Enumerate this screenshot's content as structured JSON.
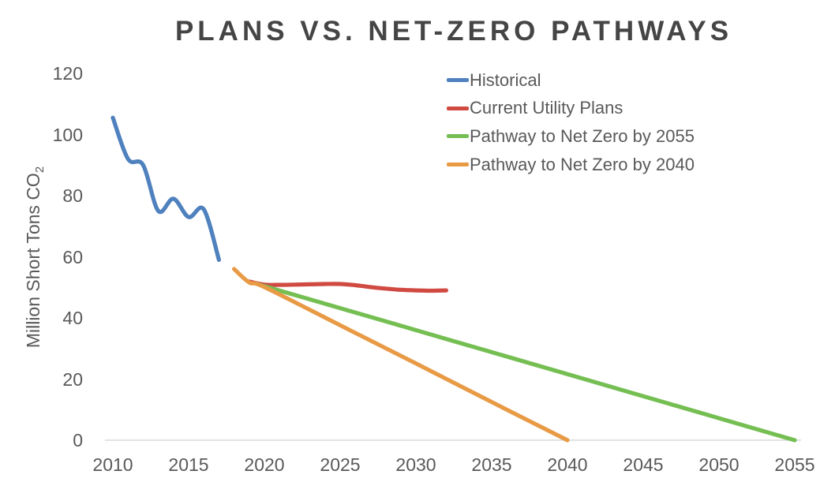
{
  "title": "PLANS VS. NET-ZERO PATHWAYS",
  "colors": {
    "historical": "#4e81bd",
    "current_utility_plans": "#d04a42",
    "net_zero_2055": "#74be52",
    "net_zero_2040": "#e89a45",
    "axis_line": "#d9d9d9",
    "text": "#595959",
    "title_text": "#454545"
  },
  "chart_data": {
    "type": "line",
    "title": "PLANS VS. NET-ZERO PATHWAYS",
    "xlabel": "",
    "ylabel": "Million Short Tons CO2",
    "ylabel_main": "Million Short Tons CO",
    "ylabel_sub": "2",
    "xlim": [
      2010,
      2055
    ],
    "ylim": [
      0,
      120
    ],
    "x_ticks": [
      2010,
      2015,
      2020,
      2025,
      2030,
      2035,
      2040,
      2045,
      2050,
      2055
    ],
    "y_ticks": [
      0,
      20,
      40,
      60,
      80,
      100,
      120
    ],
    "grid": false,
    "legend_position": "top-right-inside",
    "series": [
      {
        "name": "Historical",
        "color": "#4e81bd",
        "points": [
          [
            2010,
            105.5
          ],
          [
            2011,
            92
          ],
          [
            2012,
            90
          ],
          [
            2013,
            75
          ],
          [
            2014,
            79
          ],
          [
            2015,
            73
          ],
          [
            2016,
            75.5
          ],
          [
            2017,
            59
          ]
        ]
      },
      {
        "name": "Current Utility Plans",
        "color": "#d04a42",
        "points": [
          [
            2019,
            51.9
          ],
          [
            2020,
            50.9
          ],
          [
            2021,
            50.8
          ],
          [
            2022,
            50.9
          ],
          [
            2023,
            51.0
          ],
          [
            2024,
            51.1
          ],
          [
            2025,
            51.1
          ],
          [
            2026,
            50.7
          ],
          [
            2027,
            50.1
          ],
          [
            2028,
            49.6
          ],
          [
            2029,
            49.2
          ],
          [
            2030,
            49.0
          ],
          [
            2031,
            48.9
          ],
          [
            2032,
            49.0
          ]
        ]
      },
      {
        "name": "Pathway to Net Zero by 2055",
        "color": "#74be52",
        "points": [
          [
            2019.5,
            51.2
          ],
          [
            2020,
            50.4
          ],
          [
            2025,
            43.2
          ],
          [
            2030,
            36.0
          ],
          [
            2035,
            28.8
          ],
          [
            2040,
            21.6
          ],
          [
            2045,
            14.4
          ],
          [
            2050,
            7.2
          ],
          [
            2055,
            0
          ]
        ]
      },
      {
        "name": "Pathway to Net Zero by 2040",
        "color": "#e89a45",
        "points": [
          [
            2018,
            56
          ],
          [
            2019,
            51.6
          ],
          [
            2020,
            50.1
          ],
          [
            2025,
            37.6
          ],
          [
            2030,
            25.1
          ],
          [
            2035,
            12.5
          ],
          [
            2040,
            0
          ]
        ]
      }
    ]
  }
}
